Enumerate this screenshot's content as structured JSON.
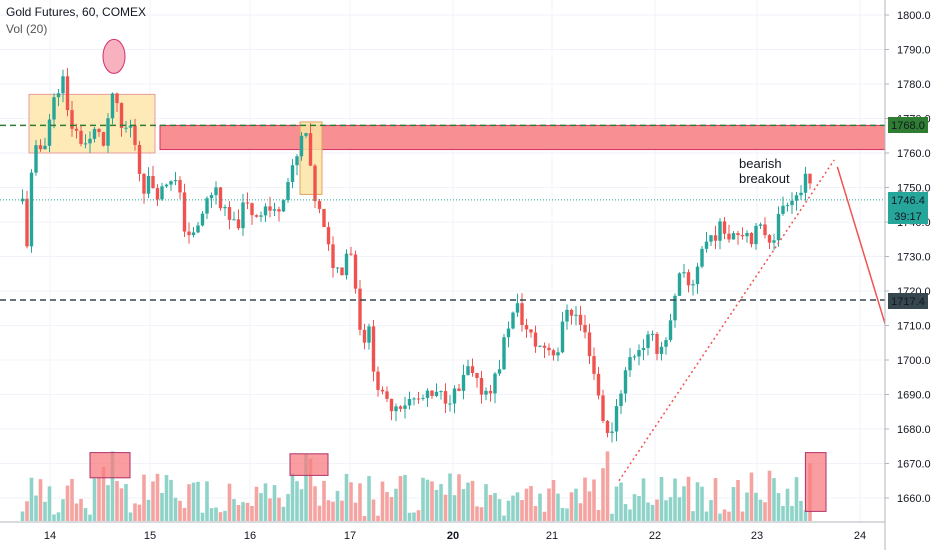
{
  "legend": {
    "title": "Gold Futures, 60, COMEX",
    "indicator": "Vol (20)"
  },
  "annotation": {
    "line1": "bearish",
    "line2": "breakout"
  },
  "price_badges": {
    "upper_level": "1768.0",
    "current_price": "1746.4",
    "countdown": "39:17",
    "lower_level": "1717.4"
  },
  "colors": {
    "up": "#26a69a",
    "down": "#ef5350",
    "up_volume": "#8fd3c8",
    "down_volume": "#f5a3a1",
    "level_line": "#2e7d32",
    "current_price": "#26a69a",
    "zone_red": "#f77c80",
    "zone_yellow": "#fce5a5",
    "trend": "#ef5350"
  },
  "chart_data": {
    "type": "candlestick",
    "title": "Gold Futures, 60, COMEX",
    "x_ticks": [
      "14",
      "15",
      "16",
      "17",
      "20",
      "21",
      "22",
      "23",
      "24"
    ],
    "y_ticks": [
      1660,
      1670,
      1680,
      1690,
      1700,
      1710,
      1720,
      1730,
      1740,
      1750,
      1760,
      1770,
      1780,
      1790,
      1800
    ],
    "ylim": [
      1655,
      1803
    ],
    "levels": [
      1768.0,
      1717.4
    ],
    "current_price": 1746.4,
    "price_path": [
      [
        13.45,
        1746
      ],
      [
        13.55,
        1733
      ],
      [
        13.62,
        1752
      ],
      [
        13.72,
        1760
      ],
      [
        13.85,
        1762
      ],
      [
        13.95,
        1766
      ],
      [
        14.05,
        1776
      ],
      [
        14.12,
        1783
      ],
      [
        14.18,
        1770
      ],
      [
        14.28,
        1765
      ],
      [
        14.38,
        1762
      ],
      [
        14.48,
        1768
      ],
      [
        14.55,
        1760
      ],
      [
        14.62,
        1778
      ],
      [
        14.72,
        1766
      ],
      [
        14.8,
        1768
      ],
      [
        14.86,
        1762
      ],
      [
        14.92,
        1750
      ],
      [
        15.0,
        1752
      ],
      [
        15.1,
        1748
      ],
      [
        15.2,
        1754
      ],
      [
        15.28,
        1750
      ],
      [
        15.35,
        1738
      ],
      [
        15.45,
        1735
      ],
      [
        15.55,
        1745
      ],
      [
        15.65,
        1750
      ],
      [
        15.75,
        1742
      ],
      [
        15.85,
        1738
      ],
      [
        15.95,
        1745
      ],
      [
        16.05,
        1742
      ],
      [
        16.15,
        1745
      ],
      [
        16.25,
        1742
      ],
      [
        16.35,
        1750
      ],
      [
        16.45,
        1756
      ],
      [
        16.55,
        1768
      ],
      [
        16.62,
        1750
      ],
      [
        16.7,
        1742
      ],
      [
        16.8,
        1730
      ],
      [
        16.9,
        1725
      ],
      [
        17.0,
        1735
      ],
      [
        17.1,
        1725
      ],
      [
        17.2,
        1718
      ],
      [
        17.3,
        1710
      ],
      [
        17.4,
        1705
      ],
      [
        17.5,
        1712
      ],
      [
        17.6,
        1704
      ],
      [
        17.7,
        1698
      ],
      [
        17.8,
        1693
      ],
      [
        17.9,
        1690
      ],
      [
        18.0,
        1687
      ],
      [
        20.05,
        1690
      ],
      [
        20.15,
        1697
      ],
      [
        20.25,
        1692
      ],
      [
        20.35,
        1691
      ],
      [
        20.45,
        1696
      ],
      [
        20.55,
        1710
      ],
      [
        20.65,
        1715
      ],
      [
        20.75,
        1708
      ],
      [
        20.85,
        1704
      ],
      [
        20.95,
        1704
      ],
      [
        21.05,
        1702
      ],
      [
        21.15,
        1716
      ],
      [
        21.25,
        1712
      ],
      [
        21.35,
        1705
      ],
      [
        21.45,
        1690
      ],
      [
        21.55,
        1676
      ],
      [
        21.65,
        1690
      ],
      [
        21.75,
        1700
      ],
      [
        21.85,
        1704
      ],
      [
        21.95,
        1706
      ],
      [
        22.05,
        1703
      ],
      [
        22.15,
        1710
      ],
      [
        22.25,
        1725
      ],
      [
        22.35,
        1720
      ],
      [
        22.45,
        1732
      ],
      [
        22.55,
        1736
      ],
      [
        22.65,
        1738
      ],
      [
        22.75,
        1737
      ],
      [
        22.85,
        1738
      ],
      [
        22.95,
        1736
      ],
      [
        23.05,
        1738
      ],
      [
        23.15,
        1735
      ],
      [
        23.25,
        1745
      ],
      [
        23.32,
        1748
      ],
      [
        23.4,
        1748
      ],
      [
        23.48,
        1752
      ],
      [
        23.55,
        1746.4
      ]
    ],
    "volume_scale": [
      0,
      100
    ],
    "volume_zones": [
      {
        "x": [
          14.4,
          14.8
        ],
        "v": [
          36,
          57
        ]
      },
      {
        "x": [
          16.4,
          16.78
        ],
        "v": [
          38,
          56
        ]
      },
      {
        "x": [
          23.47,
          23.67
        ],
        "v": [
          8,
          57
        ]
      }
    ],
    "zones": [
      {
        "x": [
          13.58,
          15.05
        ],
        "y": [
          1760,
          1777
        ]
      },
      {
        "x": [
          15.1,
          24.3
        ],
        "y": [
          1761,
          1768
        ]
      },
      {
        "x": [
          16.5,
          16.72
        ],
        "y": [
          1748,
          1769
        ]
      }
    ],
    "trendline": {
      "from": [
        21.65,
        1665
      ],
      "to": [
        23.75,
        1758
      ]
    },
    "projection": {
      "from": [
        23.78,
        1756
      ],
      "to": [
        24.35,
        1701
      ]
    },
    "spike_marker": {
      "x": 14.64,
      "y": 1788
    }
  }
}
